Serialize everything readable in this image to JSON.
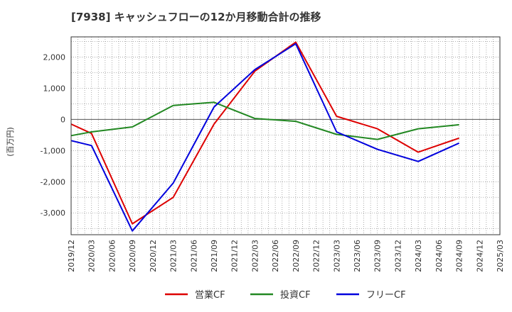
{
  "chart_data": {
    "type": "line",
    "title": "[7938]  キャッシュフローの12か月移動合計の推移",
    "ylabel": "(百万円)",
    "ylim": [
      -3700,
      2650
    ],
    "yticks": [
      2000,
      1000,
      0,
      -1000,
      -2000,
      -3000
    ],
    "ytick_labels": [
      "2,000",
      "1,000",
      "0",
      "-1,000",
      "-2,000",
      "-3,000"
    ],
    "x_categories": [
      "2019/12",
      "2020/03",
      "2020/06",
      "2020/09",
      "2020/12",
      "2021/03",
      "2021/06",
      "2021/09",
      "2021/12",
      "2022/03",
      "2022/06",
      "2022/09",
      "2022/12",
      "2023/03",
      "2023/06",
      "2023/09",
      "2023/12",
      "2024/03",
      "2024/06",
      "2024/09",
      "2024/12",
      "2025/03"
    ],
    "grid": true,
    "legend_position": "bottom-center",
    "series": [
      {
        "name": "営業CF",
        "color": "#dd0000",
        "points": [
          [
            "2019/12",
            -150
          ],
          [
            "2020/03",
            -450
          ],
          [
            "2020/09",
            -3350
          ],
          [
            "2021/03",
            -2500
          ],
          [
            "2021/09",
            -150
          ],
          [
            "2022/03",
            1550
          ],
          [
            "2022/09",
            2480
          ],
          [
            "2023/03",
            100
          ],
          [
            "2023/09",
            -300
          ],
          [
            "2024/03",
            -1050
          ],
          [
            "2024/09",
            -600
          ]
        ]
      },
      {
        "name": "投資CF",
        "color": "#228822",
        "points": [
          [
            "2019/12",
            -520
          ],
          [
            "2020/03",
            -400
          ],
          [
            "2020/09",
            -240
          ],
          [
            "2021/03",
            450
          ],
          [
            "2021/09",
            550
          ],
          [
            "2022/03",
            30
          ],
          [
            "2022/09",
            -60
          ],
          [
            "2023/03",
            -480
          ],
          [
            "2023/09",
            -640
          ],
          [
            "2024/03",
            -300
          ],
          [
            "2024/09",
            -170
          ]
        ]
      },
      {
        "name": "フリーCF",
        "color": "#0000dd",
        "points": [
          [
            "2019/12",
            -680
          ],
          [
            "2020/03",
            -840
          ],
          [
            "2020/09",
            -3580
          ],
          [
            "2021/03",
            -2040
          ],
          [
            "2021/09",
            400
          ],
          [
            "2022/03",
            1600
          ],
          [
            "2022/09",
            2430
          ],
          [
            "2023/03",
            -400
          ],
          [
            "2023/09",
            -960
          ],
          [
            "2024/03",
            -1350
          ],
          [
            "2024/09",
            -760
          ]
        ]
      }
    ]
  }
}
